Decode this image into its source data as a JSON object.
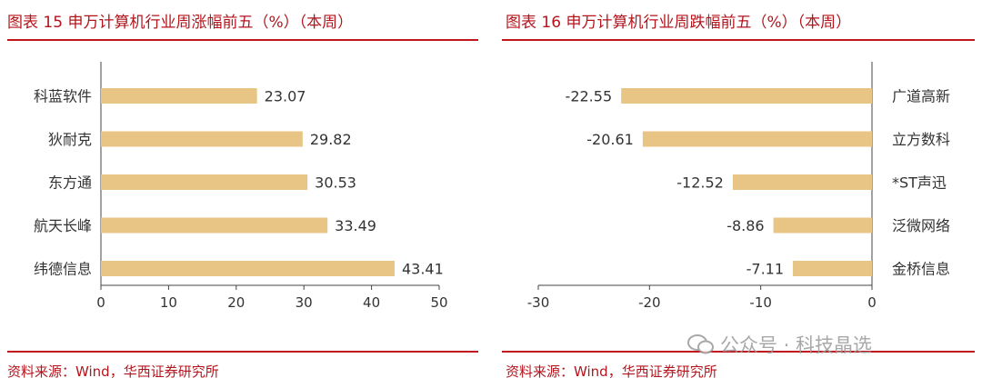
{
  "colors": {
    "bar": "#e8c585",
    "accent": "#c0161e",
    "text": "#333333"
  },
  "chart_data": [
    {
      "type": "bar",
      "orientation": "horizontal",
      "title": "图表 15 申万计算机行业周涨幅前五（%）（本周）",
      "categories": [
        "科蓝软件",
        "狄耐克",
        "东方通",
        "航天长峰",
        "纬德信息"
      ],
      "values": [
        23.07,
        29.82,
        30.53,
        33.49,
        43.41
      ],
      "value_labels": [
        "23.07",
        "29.82",
        "30.53",
        "33.49",
        "43.41"
      ],
      "xlim": [
        0,
        50
      ],
      "xticks": [
        0,
        10,
        20,
        30,
        40,
        50
      ],
      "source": "资料来源：Wind，华西证券研究所"
    },
    {
      "type": "bar",
      "orientation": "horizontal",
      "title": "图表 16 申万计算机行业周跌幅前五（%）（本周）",
      "categories": [
        "广道高新",
        "立方数科",
        "*ST声迅",
        "泛微网络",
        "金桥信息"
      ],
      "values": [
        -22.55,
        -20.61,
        -12.52,
        -8.86,
        -7.11
      ],
      "value_labels": [
        "-22.55",
        "-20.61",
        "-12.52",
        "-8.86",
        "-7.11"
      ],
      "xlim": [
        -30,
        0
      ],
      "xticks": [
        -30,
        -20,
        -10,
        0
      ],
      "source": "资料来源：Wind，华西证券研究所"
    }
  ],
  "watermark": "公众号 · 科技晶选"
}
